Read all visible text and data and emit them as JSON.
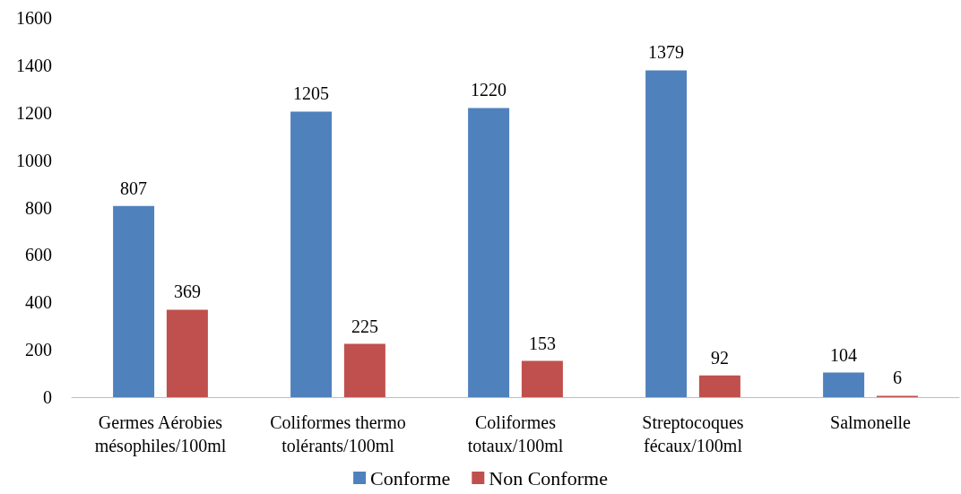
{
  "chart_data": {
    "type": "bar",
    "categories": [
      "Germes Aérobies\nmésophiles/100ml",
      "Coliformes thermo\ntolérants/100ml",
      "Coliformes\ntotaux/100ml",
      "Streptocoques\nfécaux/100ml",
      "Salmonelle"
    ],
    "series": [
      {
        "name": "Conforme",
        "color": "#4f81bd",
        "values": [
          807,
          1205,
          1220,
          1379,
          104
        ]
      },
      {
        "name": "Non Conforme",
        "color": "#c0504d",
        "values": [
          369,
          225,
          153,
          92,
          6
        ]
      }
    ],
    "ylim": [
      0,
      1600
    ],
    "yticks": [
      0,
      200,
      400,
      600,
      800,
      1000,
      1200,
      1400,
      1600
    ],
    "grid": false,
    "legend": "bottom",
    "data_labels": true
  }
}
